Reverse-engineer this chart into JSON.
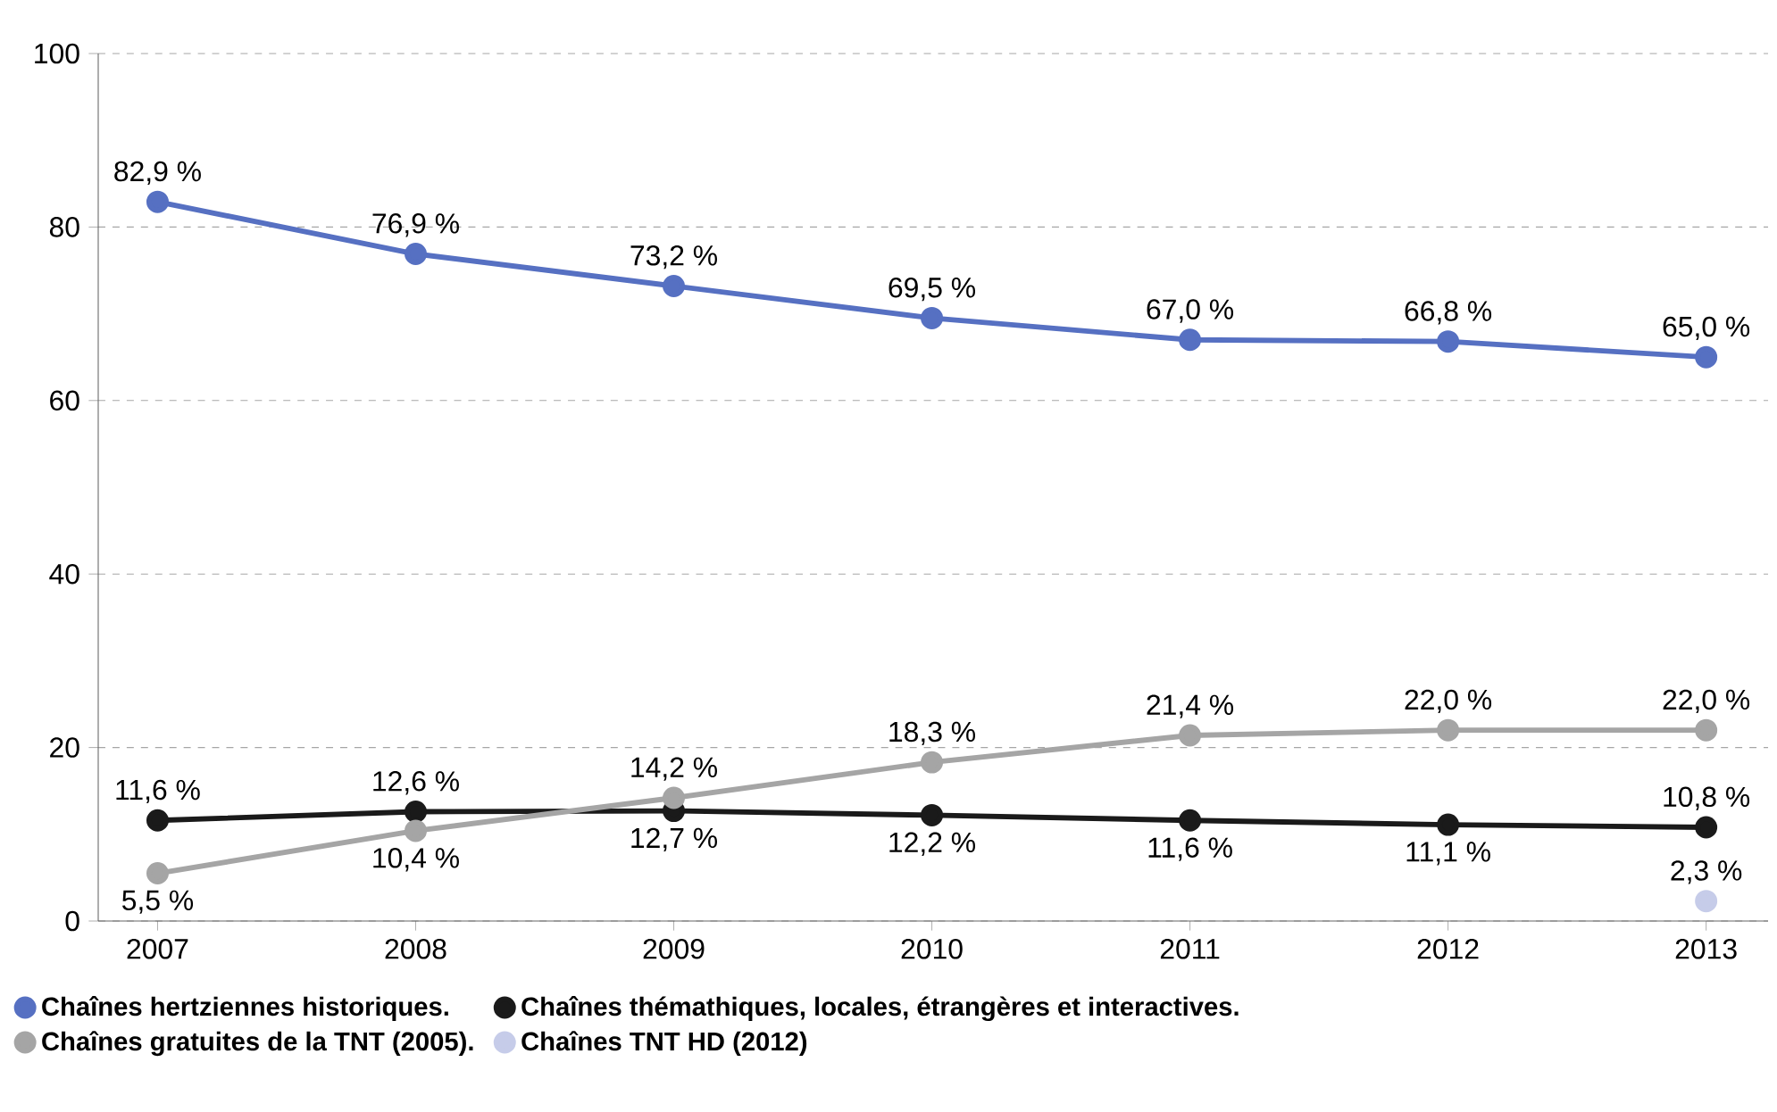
{
  "chart_data": {
    "type": "line",
    "categories": [
      "2007",
      "2008",
      "2009",
      "2010",
      "2011",
      "2012",
      "2013"
    ],
    "series": [
      {
        "name": "Chaînes hertziennes historiques.",
        "color": "#5670c2",
        "values": [
          82.9,
          76.9,
          73.2,
          69.5,
          67.0,
          66.8,
          65.0
        ],
        "value_labels": [
          "82,9 %",
          "76,9 %",
          "73,2 %",
          "69,5 %",
          "67,0 %",
          "66,8 %",
          "65,0 %"
        ]
      },
      {
        "name": "Chaînes thémathiques, locales, étrangères et interactives.",
        "color": "#1a1a1a",
        "values": [
          11.6,
          12.6,
          12.7,
          12.2,
          11.6,
          11.1,
          10.8
        ],
        "value_labels": [
          "11,6 %",
          "12,6 %",
          "12,7 %",
          "12,2 %",
          "11,6 %",
          "11,1 %",
          "10,8 %"
        ]
      },
      {
        "name": "Chaînes gratuites de la TNT (2005).",
        "color": "#a5a5a5",
        "values": [
          5.5,
          10.4,
          14.2,
          18.3,
          21.4,
          22.0,
          22.0
        ],
        "value_labels": [
          "5,5 %",
          "10,4 %",
          "14,2 %",
          "18,3 %",
          "21,4 %",
          "22,0 %",
          "22,0 %"
        ]
      },
      {
        "name": "Chaînes TNT HD (2012)",
        "color": "#c6cce9",
        "values": [
          null,
          null,
          null,
          null,
          null,
          null,
          2.3
        ],
        "value_labels": [
          null,
          null,
          null,
          null,
          null,
          null,
          "2,3 %"
        ]
      }
    ],
    "ylim": [
      0,
      100
    ],
    "yticks": [
      0,
      20,
      40,
      60,
      80,
      100
    ],
    "grid": "y",
    "legend": "bottom left",
    "marker": "circle",
    "line_style": "solid"
  }
}
